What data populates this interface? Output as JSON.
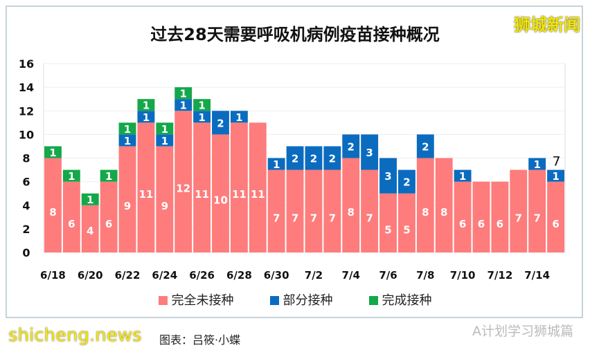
{
  "chart_data": {
    "type": "bar",
    "stacked": true,
    "title": "过去28天需要呼吸机病例疫苗接种概况",
    "categories": [
      "6/18",
      "6/19",
      "6/20",
      "6/21",
      "6/22",
      "6/23",
      "6/24",
      "6/25",
      "6/26",
      "6/27",
      "6/28",
      "6/29",
      "6/30",
      "7/1",
      "7/2",
      "7/3",
      "7/4",
      "7/5",
      "7/6",
      "7/7",
      "7/8",
      "7/9",
      "7/10",
      "7/11",
      "7/12",
      "7/13",
      "7/14",
      "7/15"
    ],
    "tick_labels": [
      "6/18",
      "6/20",
      "6/22",
      "6/24",
      "6/26",
      "6/28",
      "6/30",
      "7/2",
      "7/4",
      "7/6",
      "7/8",
      "7/10",
      "7/12",
      "7/14"
    ],
    "series": [
      {
        "name": "完全未接种",
        "color": "#fe7c7c",
        "values": [
          8,
          6,
          4,
          6,
          9,
          11,
          9,
          12,
          11,
          10,
          11,
          11,
          7,
          7,
          7,
          7,
          8,
          7,
          5,
          5,
          8,
          8,
          6,
          6,
          6,
          7,
          7,
          6
        ]
      },
      {
        "name": "部分接种",
        "color": "#0b6cbf",
        "values": [
          0,
          0,
          0,
          0,
          1,
          1,
          1,
          1,
          1,
          2,
          1,
          0,
          1,
          2,
          2,
          2,
          2,
          3,
          3,
          2,
          2,
          0,
          1,
          0,
          0,
          0,
          1,
          1
        ]
      },
      {
        "name": "完成接种",
        "color": "#14a84a",
        "values": [
          1,
          1,
          1,
          1,
          1,
          1,
          1,
          1,
          1,
          0,
          0,
          0,
          0,
          0,
          0,
          0,
          0,
          0,
          0,
          0,
          0,
          0,
          0,
          0,
          0,
          0,
          0,
          0
        ]
      }
    ],
    "ylim": [
      0,
      16
    ],
    "yticks": [
      0,
      2,
      4,
      6,
      8,
      10,
      12,
      14,
      16
    ],
    "annotation": "7",
    "grid": true,
    "legend": "bottom"
  },
  "watermark": "狮城新闻",
  "credit": "图表：吕筱·小蝶",
  "site": "shicheng.news",
  "wechat": "A计划学习狮城篇"
}
